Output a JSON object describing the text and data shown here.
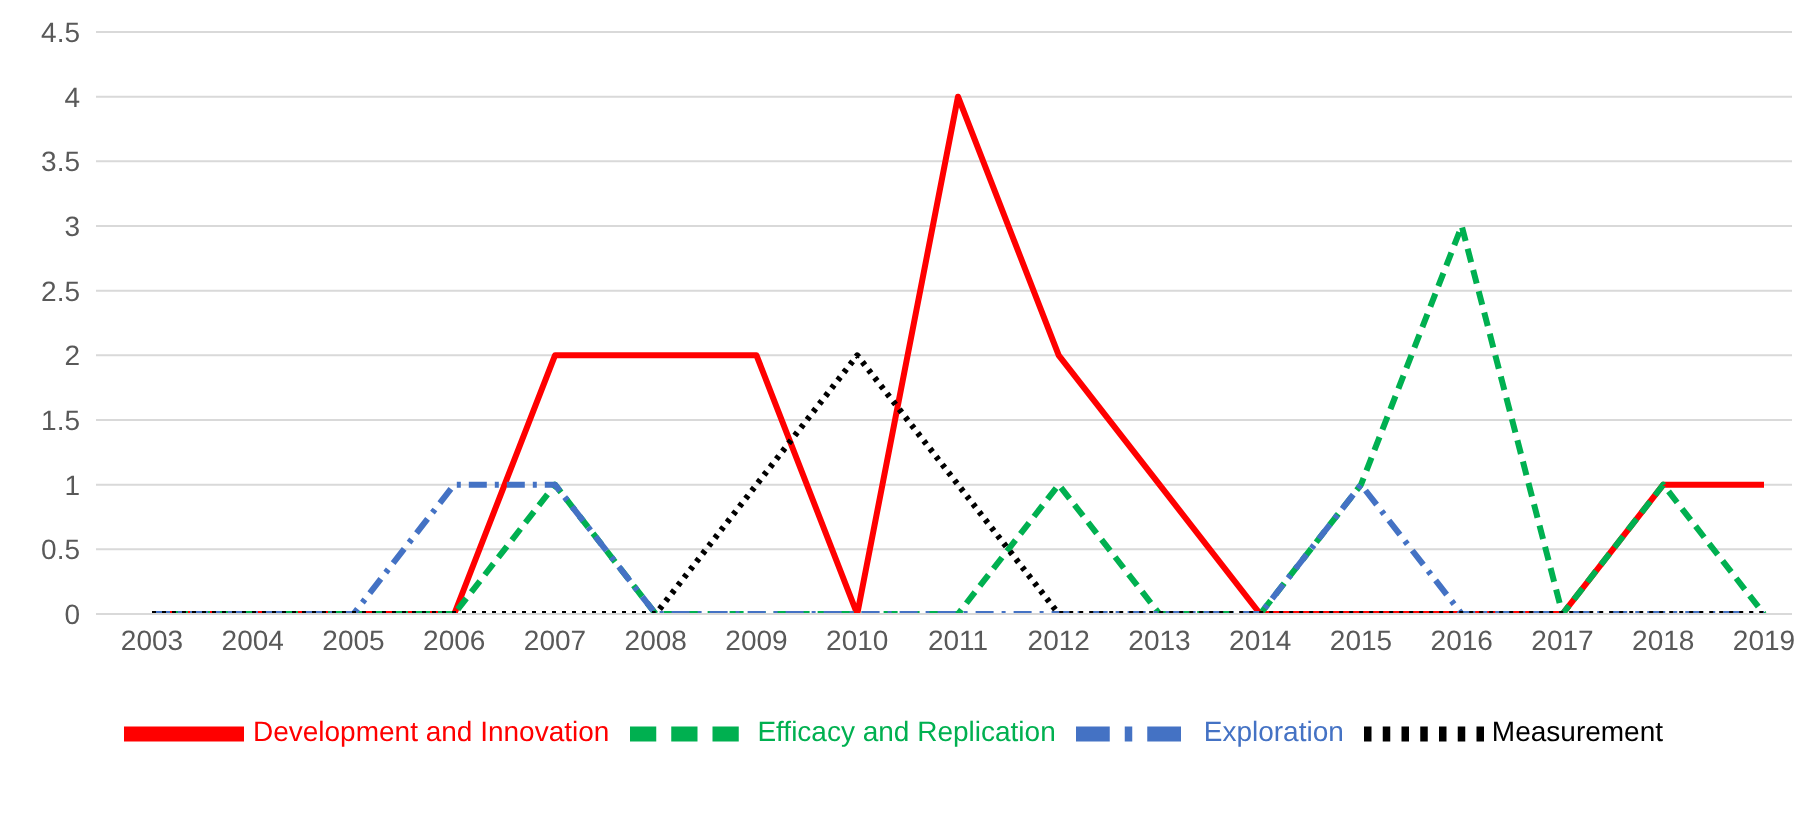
{
  "chart_data": {
    "type": "line",
    "categories": [
      "2003",
      "2004",
      "2005",
      "2006",
      "2007",
      "2008",
      "2009",
      "2010",
      "2011",
      "2012",
      "2013",
      "2014",
      "2015",
      "2016",
      "2017",
      "2018",
      "2019"
    ],
    "series": [
      {
        "name": "Development and Innovation",
        "color": "#ff0000",
        "line_style": "solid",
        "values": [
          0,
          0,
          0,
          0,
          2,
          2,
          2,
          0,
          4,
          2,
          1,
          0,
          0,
          0,
          0,
          1,
          1
        ]
      },
      {
        "name": "Efficacy and Replication",
        "color": "#00b050",
        "line_style": "dashed",
        "values": [
          0,
          0,
          0,
          0,
          1,
          0,
          0,
          0,
          0,
          1,
          0,
          0,
          1,
          3,
          0,
          1,
          0
        ]
      },
      {
        "name": "Exploration",
        "color": "#4472c4",
        "line_style": "dashdot",
        "values": [
          0,
          0,
          0,
          1,
          1,
          0,
          0,
          0,
          0,
          0,
          0,
          0,
          1,
          0,
          0,
          0,
          0
        ]
      },
      {
        "name": "Measurement",
        "color": "#000000",
        "line_style": "dotted",
        "values": [
          0,
          0,
          0,
          0,
          0,
          0,
          1,
          2,
          1,
          0,
          0,
          0,
          0,
          0,
          0,
          0,
          0
        ]
      }
    ],
    "ylim": [
      0,
      4.5
    ],
    "yticks": [
      0,
      0.5,
      1,
      1.5,
      2,
      2.5,
      3,
      3.5,
      4,
      4.5
    ],
    "grid": "y",
    "legend": "bottom",
    "marker": "none"
  }
}
